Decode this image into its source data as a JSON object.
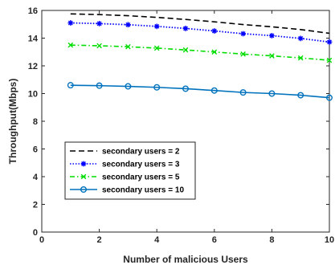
{
  "chart_data": {
    "type": "line",
    "xlabel": "Number of malicious Users",
    "ylabel": "Throughput(Mbps)",
    "xlim": [
      0,
      10
    ],
    "ylim": [
      0,
      16
    ],
    "xticks": [
      "0",
      "2",
      "4",
      "6",
      "8",
      "10"
    ],
    "yticks": [
      "0",
      "2",
      "4",
      "6",
      "8",
      "10",
      "12",
      "14",
      "16"
    ],
    "grid": false,
    "legend_position": "middle-left",
    "x": [
      1,
      2,
      3,
      4,
      5,
      6,
      7,
      8,
      9,
      10
    ],
    "series": [
      {
        "name": "secondary users = 2",
        "values": [
          15.75,
          15.7,
          15.62,
          15.5,
          15.35,
          15.18,
          14.98,
          14.82,
          14.62,
          14.35
        ],
        "color": "#000000",
        "line": "dashed",
        "marker": "none"
      },
      {
        "name": "secondary users = 3",
        "values": [
          15.1,
          15.05,
          14.97,
          14.85,
          14.7,
          14.52,
          14.32,
          14.18,
          13.98,
          13.72
        ],
        "color": "#0000ff",
        "line": "dotted",
        "marker": "asterisk"
      },
      {
        "name": "secondary users = 5",
        "values": [
          13.5,
          13.45,
          13.38,
          13.28,
          13.15,
          13.0,
          12.85,
          12.72,
          12.57,
          12.4
        ],
        "color": "#00dd00",
        "line": "dashdot",
        "marker": "x"
      },
      {
        "name": "secondary users = 10",
        "values": [
          10.6,
          10.57,
          10.52,
          10.45,
          10.35,
          10.22,
          10.08,
          10.0,
          9.88,
          9.7
        ],
        "color": "#0072bd",
        "line": "solid",
        "marker": "circle"
      }
    ]
  }
}
